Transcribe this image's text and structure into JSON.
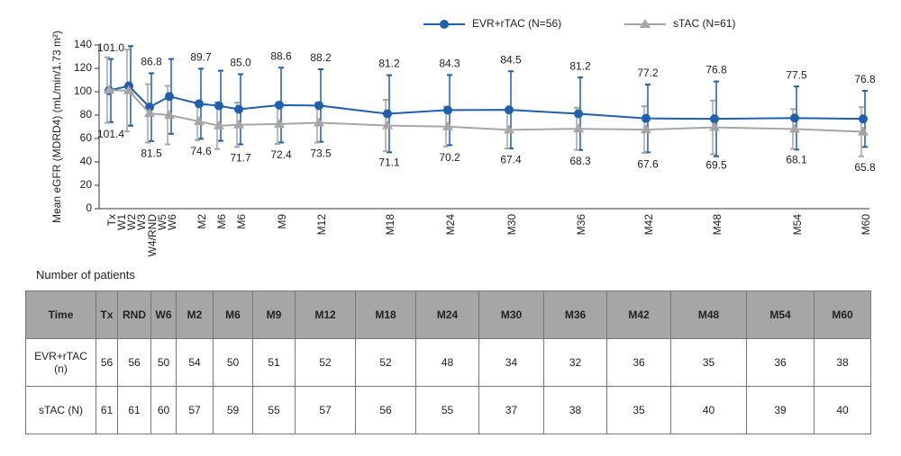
{
  "chart_data": {
    "type": "line",
    "y_label": "Mean eGFR (MDRD4) (mL/min/1.73 m²)",
    "categories": [
      "Tx",
      "W1",
      "W2",
      "W3",
      "W4/RND",
      "W5",
      "W6",
      "M2",
      "M6",
      "M6",
      "M9",
      "M12",
      "M18",
      "M24",
      "M30",
      "M36",
      "M42",
      "M48",
      "M54",
      "M60"
    ],
    "ylim": [
      0,
      140
    ],
    "yticks": [
      0,
      20,
      40,
      60,
      80,
      100,
      120,
      140
    ],
    "series": [
      {
        "name": "EVR+rTAC (N=56)",
        "color": "#1f5fae",
        "marker": "circle",
        "values": [
          101.0,
          null,
          105,
          null,
          86.8,
          null,
          96,
          89.7,
          88,
          85.0,
          88.6,
          88.2,
          81.2,
          84.3,
          84.5,
          81.2,
          77.2,
          76.8,
          77.5,
          76.8
        ],
        "errors": [
          27,
          null,
          34,
          null,
          29,
          null,
          32,
          30,
          30,
          30,
          32,
          31,
          33,
          30,
          33,
          31,
          29,
          32,
          27,
          24
        ],
        "value_labels": [
          "101.0",
          null,
          null,
          null,
          "86.8",
          null,
          null,
          "89.7",
          null,
          "85.0",
          "88.6",
          "88.2",
          "81.2",
          "84.3",
          "84.5",
          "81.2",
          "77.2",
          "76.8",
          "77.5",
          "76.8"
        ]
      },
      {
        "name": "sTAC (N=61)",
        "color": "#a6a6a6",
        "marker": "triangle",
        "values": [
          101.4,
          null,
          101,
          null,
          81.5,
          null,
          80,
          74.6,
          71,
          71.7,
          72.4,
          73.5,
          71.1,
          70.2,
          67.4,
          68.3,
          67.6,
          69.5,
          68.1,
          65.8
        ],
        "errors": [
          28,
          null,
          35,
          null,
          25,
          null,
          25,
          16,
          20,
          19,
          17,
          17,
          22,
          17,
          16,
          18,
          20,
          23,
          17,
          21
        ],
        "value_labels": [
          "101.4",
          null,
          null,
          null,
          "81.5",
          null,
          null,
          "74.6",
          null,
          "71.7",
          "72.4",
          "73.5",
          "71.1",
          "70.2",
          "67.4",
          "68.3",
          "67.6",
          "69.5",
          "68.1",
          "65.8"
        ]
      }
    ]
  },
  "table": {
    "title": "Number of patients",
    "header": [
      "Time",
      "Tx",
      "RND",
      "W6",
      "M2",
      "M6",
      "M9",
      "M12",
      "M18",
      "M24",
      "M30",
      "M36",
      "M42",
      "M48",
      "M54",
      "M60"
    ],
    "rows": [
      [
        "EVR+rTAC (n)",
        56,
        56,
        50,
        54,
        50,
        51,
        52,
        52,
        48,
        34,
        32,
        36,
        35,
        36,
        38
      ],
      [
        "sTAC (N)",
        61,
        61,
        60,
        57,
        59,
        55,
        57,
        56,
        55,
        37,
        38,
        35,
        40,
        39,
        40
      ]
    ]
  }
}
